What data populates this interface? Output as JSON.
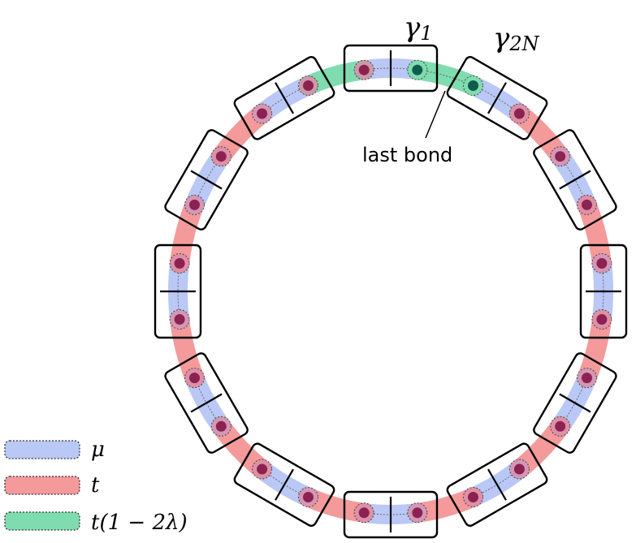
{
  "labels": {
    "gamma_1": "γ1",
    "gamma_2N": "γ2N",
    "last_bond": "last bond"
  },
  "legend": [
    {
      "key": "mu",
      "label": "μ",
      "color": "#b9c8f5"
    },
    {
      "key": "t",
      "label": "t",
      "color": "#f49a9b"
    },
    {
      "key": "t_lambda",
      "label": "t(1 − 2λ)",
      "color": "#7fdcb0"
    }
  ],
  "colors": {
    "mu": "#b9c8f5",
    "t": "#f49a9b",
    "t_lambda": "#7fdcb0",
    "site": "#8b2252",
    "site_special": "#0f5c4c",
    "frame": "#000000"
  },
  "ring": {
    "cell_count": 12,
    "sites_per_cell": 2
  }
}
